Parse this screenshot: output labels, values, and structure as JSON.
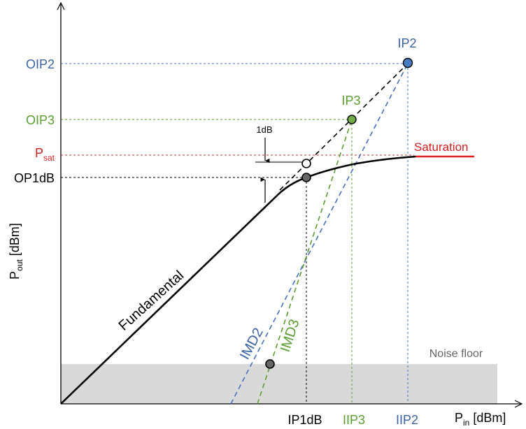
{
  "axes": {
    "x_label_main": "P",
    "x_label_sub": "in",
    "x_label_unit": "[dBm]",
    "y_label_main": "P",
    "y_label_sub": "out",
    "y_label_unit": "[dBm]"
  },
  "x_ticks": {
    "ip1db": "IP1dB",
    "iip3": "IIP3",
    "iip2": "IIP2"
  },
  "y_ticks": {
    "oip2": "OIP2",
    "oip3": "OIP3",
    "psat_main": "P",
    "psat_sub": "sat",
    "op1db": "OP1dB"
  },
  "points": {
    "ip2": "IP2",
    "ip3": "IP3"
  },
  "curves": {
    "fundamental": "Fundamental",
    "imd2": "IMD2",
    "imd3": "IMD3",
    "saturation": "Saturation"
  },
  "annotations": {
    "one_db": "1dB",
    "noise_floor": "Noise floor"
  },
  "colors": {
    "fundamental": "#000000",
    "imd2": "#4472c4",
    "imd3": "#5a9e2f",
    "saturation": "#e02020",
    "oip2_label": "#3a62a7",
    "oip3_label": "#5a9e2f",
    "psat_label": "#d02020",
    "noise_floor": "#d9d9d9"
  }
}
